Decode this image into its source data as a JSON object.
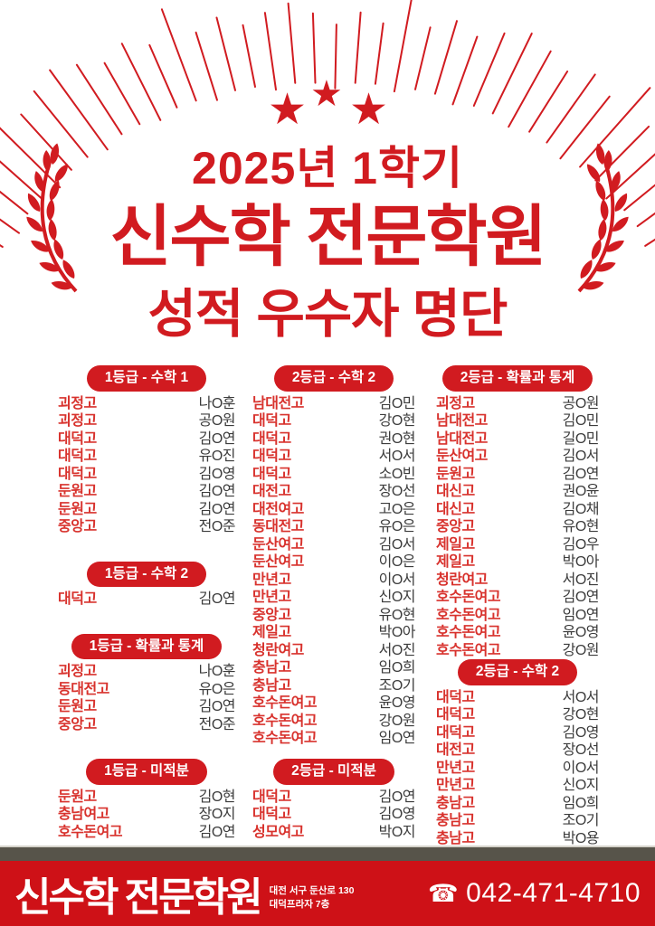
{
  "header": {
    "semester": "2025년 1학기",
    "academy": "신수학 전문학원",
    "subtitle": "성적 우수자 명단"
  },
  "icons": {
    "star": "★",
    "phone": "☎"
  },
  "columns": [
    {
      "sections": [
        {
          "header": "1등급 - 수학 1",
          "rows": [
            {
              "school": "괴정고",
              "name": "나O훈"
            },
            {
              "school": "괴정고",
              "name": "공O원"
            },
            {
              "school": "대덕고",
              "name": "김O연"
            },
            {
              "school": "대덕고",
              "name": "유O진"
            },
            {
              "school": "대덕고",
              "name": "김O영"
            },
            {
              "school": "둔원고",
              "name": "김O연"
            },
            {
              "school": "둔원고",
              "name": "김O연"
            },
            {
              "school": "중앙고",
              "name": "전O준"
            }
          ]
        },
        {
          "header": "1등급 - 수학 2",
          "rows": [
            {
              "school": "대덕고",
              "name": "김O연"
            }
          ]
        },
        {
          "header": "1등급 - 확률과 통계",
          "rows": [
            {
              "school": "괴정고",
              "name": "나O훈"
            },
            {
              "school": "동대전고",
              "name": "유O은"
            },
            {
              "school": "둔원고",
              "name": "김O연"
            },
            {
              "school": "중앙고",
              "name": "전O준"
            }
          ]
        },
        {
          "header": "1등급 - 미적분",
          "rows": [
            {
              "school": "둔원고",
              "name": "김O현"
            },
            {
              "school": "충남여고",
              "name": "장O지"
            },
            {
              "school": "호수돈여고",
              "name": "김O연"
            }
          ]
        }
      ]
    },
    {
      "sections": [
        {
          "header": "2등급 - 수학 2",
          "rows": [
            {
              "school": "남대전고",
              "name": "김O민"
            },
            {
              "school": "대덕고",
              "name": "강O현"
            },
            {
              "school": "대덕고",
              "name": "권O현"
            },
            {
              "school": "대덕고",
              "name": "서O서"
            },
            {
              "school": "대덕고",
              "name": "소O빈"
            },
            {
              "school": "대전고",
              "name": "장O선"
            },
            {
              "school": "대전여고",
              "name": "고O은"
            },
            {
              "school": "동대전고",
              "name": "유O은"
            },
            {
              "school": "둔산여고",
              "name": "김O서"
            },
            {
              "school": "둔산여고",
              "name": "이O은"
            },
            {
              "school": "만년고",
              "name": "이O서"
            },
            {
              "school": "만년고",
              "name": "신O지"
            },
            {
              "school": "중앙고",
              "name": "유O현"
            },
            {
              "school": "제일고",
              "name": "박O아"
            },
            {
              "school": "청란여고",
              "name": "서O진"
            },
            {
              "school": "충남고",
              "name": "임O희"
            },
            {
              "school": "충남고",
              "name": "조O기"
            },
            {
              "school": "호수돈여고",
              "name": "윤O영"
            },
            {
              "school": "호수돈여고",
              "name": "강O원"
            },
            {
              "school": "호수돈여고",
              "name": "임O연"
            }
          ]
        },
        {
          "header": "2등급 - 미적분",
          "rows": [
            {
              "school": "대덕고",
              "name": "김O연"
            },
            {
              "school": "대덕고",
              "name": "김O영"
            },
            {
              "school": "성모여고",
              "name": "박O지"
            }
          ]
        }
      ]
    },
    {
      "sections": [
        {
          "header": "2등급 - 확률과 통계",
          "rows": [
            {
              "school": "괴정고",
              "name": "공O원"
            },
            {
              "school": "남대전고",
              "name": "김O민"
            },
            {
              "school": "남대전고",
              "name": "길O민"
            },
            {
              "school": "둔산여고",
              "name": "김O서"
            },
            {
              "school": "둔원고",
              "name": "김O연"
            },
            {
              "school": "대신고",
              "name": "권O윤"
            },
            {
              "school": "대신고",
              "name": "김O채"
            },
            {
              "school": "중앙고",
              "name": "유O현"
            },
            {
              "school": "제일고",
              "name": "김O우"
            },
            {
              "school": "제일고",
              "name": "박O아"
            },
            {
              "school": "청란여고",
              "name": "서O진"
            },
            {
              "school": "호수돈여고",
              "name": "김O연"
            },
            {
              "school": "호수돈여고",
              "name": "임O연"
            },
            {
              "school": "호수돈여고",
              "name": "윤O영"
            },
            {
              "school": "호수돈여고",
              "name": "강O원"
            }
          ]
        },
        {
          "header": "2등급 - 수학 2",
          "rows": [
            {
              "school": "대덕고",
              "name": "서O서"
            },
            {
              "school": "대덕고",
              "name": "강O현"
            },
            {
              "school": "대덕고",
              "name": "김O영"
            },
            {
              "school": "대전고",
              "name": "장O선"
            },
            {
              "school": "만년고",
              "name": "이O서"
            },
            {
              "school": "만년고",
              "name": "신O지"
            },
            {
              "school": "충남고",
              "name": "임O희"
            },
            {
              "school": "충남고",
              "name": "조O기"
            },
            {
              "school": "충남고",
              "name": "박O용"
            }
          ]
        }
      ]
    }
  ],
  "footer": {
    "logo": "신수학 전문학원",
    "address_line1": "대전 서구 둔산로 130",
    "address_line2": "대덕프라자 7층",
    "phone": "042-471-4710"
  },
  "colors": {
    "accent": "#d11b20",
    "school_red": "#d8322d",
    "name_gray": "#3c3c3c",
    "olive_bar": "#57544a",
    "footer_red": "#ce1117"
  }
}
